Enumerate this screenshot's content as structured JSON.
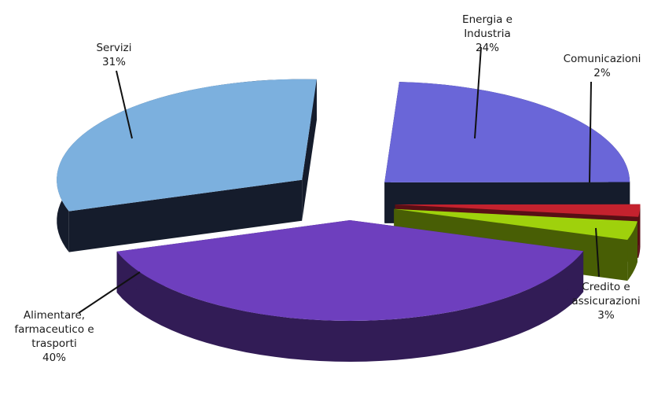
{
  "chart_data": {
    "type": "pie",
    "title": "",
    "slices": [
      {
        "label_lines": [
          "Energia e",
          "Industria"
        ],
        "percent_label": "24%",
        "value": 24,
        "color": "#6a66d8"
      },
      {
        "label_lines": [
          "Comunicazioni"
        ],
        "percent_label": "2%",
        "value": 2,
        "color": "#c4222e"
      },
      {
        "label_lines": [
          "Credito e",
          "assicurazioni"
        ],
        "percent_label": "3%",
        "value": 3,
        "color": "#9fd10c"
      },
      {
        "label_lines": [
          "Alimentare,",
          "farmaceutico e",
          "trasporti"
        ],
        "percent_label": "40%",
        "value": 40,
        "color": "#6e3fbe"
      },
      {
        "label_lines": [
          "Servizi"
        ],
        "percent_label": "31%",
        "value": 31,
        "color": "#7cb0de"
      }
    ],
    "legend": "none",
    "style": "3d-exploded"
  }
}
